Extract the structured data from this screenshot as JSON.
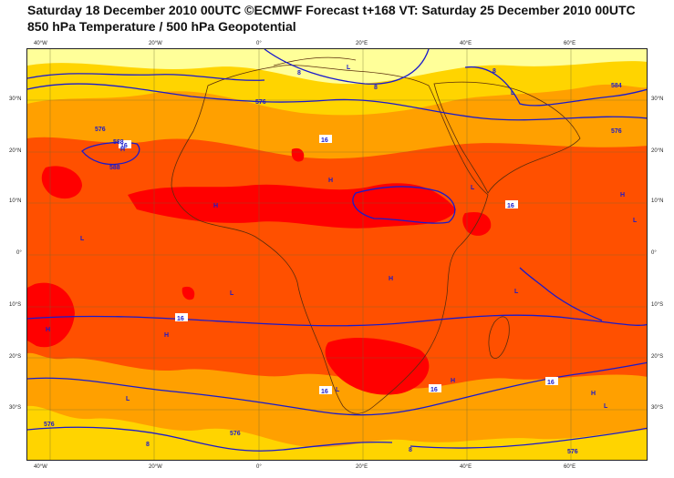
{
  "header": {
    "line1": "Saturday 18 December 2010 00UTC ©ECMWF Forecast t+168 VT: Saturday 25 December 2010 00UTC",
    "line2": "850 hPa Temperature / 500 hPa Geopotential"
  },
  "axes": {
    "lon_top": [
      "40°W",
      "20°W",
      "0°",
      "20°E",
      "40°E",
      "60°E"
    ],
    "lon_bottom": [
      "40°W",
      "20°W",
      "0°",
      "20°E",
      "40°E",
      "60°E"
    ],
    "lat_left": [
      "30°N",
      "20°N",
      "10°N",
      "0°",
      "10°S",
      "20°S",
      "30°S"
    ],
    "lat_right": [
      "30°N",
      "20°N",
      "10°N",
      "0°",
      "10°S",
      "20°S",
      "30°S"
    ]
  },
  "pressure_labels": {
    "highs": [
      "H",
      "H",
      "H",
      "H",
      "H",
      "H",
      "H",
      "H",
      "H"
    ],
    "lows": [
      "L",
      "L",
      "L",
      "L",
      "L",
      "L",
      "L",
      "L",
      "L",
      "L"
    ]
  },
  "contour_labels": [
    "576",
    "576",
    "576",
    "576",
    "576",
    "576",
    "584",
    "588",
    "588",
    "8",
    "8",
    "8",
    "8",
    "8",
    "16",
    "16",
    "16",
    "16",
    "16",
    "16",
    "16"
  ],
  "colors": {
    "light_yellow": "#ffff99",
    "yellow": "#ffd400",
    "orange": "#ffa000",
    "red_orange": "#ff5000",
    "red": "#ff0000",
    "contour": "#1a1acc",
    "coast": "#5a2d0c"
  }
}
